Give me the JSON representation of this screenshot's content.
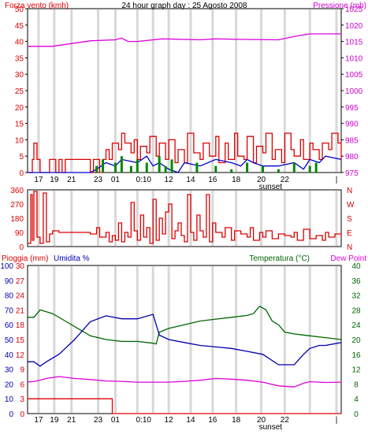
{
  "chart_data": [
    {
      "type": "line",
      "title": "24 hour graph day : 25 Agosto 2008",
      "left_axis_label": "Forza vento (kmh)",
      "right_axis_label": "Pressione (mb)",
      "left_ylim": [
        0,
        50
      ],
      "left_ticks": [
        "0",
        "5",
        "10",
        "15",
        "20",
        "25",
        "30",
        "35",
        "40",
        "45",
        "50"
      ],
      "right_ylim": [
        975,
        1025
      ],
      "right_ticks": [
        "975",
        "980",
        "985",
        "990",
        "995",
        "1000",
        "1005",
        "1010",
        "1015",
        "1020",
        "1025"
      ],
      "x_ticks": [
        "17",
        "19",
        "21",
        "23",
        "01",
        "0:10",
        "12",
        "14",
        "16",
        "18",
        "20",
        "22",
        "|"
      ],
      "annotation": "sunset",
      "series": [
        {
          "color": "#dd00dd",
          "axis": "right",
          "x": [
            0,
            0.08,
            0.15,
            0.2,
            0.28,
            0.3,
            0.32,
            0.35,
            0.43,
            0.55,
            0.6,
            0.7,
            0.8,
            0.85,
            0.88,
            0.9,
            1
          ],
          "y": [
            1013.5,
            1013.5,
            1014.5,
            1015.2,
            1015.5,
            1016,
            1015,
            1015,
            1015.8,
            1015.5,
            1015.8,
            1015.6,
            1015.5,
            1016.5,
            1017,
            1017.3,
            1017.3
          ]
        },
        {
          "color": "#dd0000",
          "axis": "left",
          "x": [
            0,
            0.015,
            0.02,
            0.03,
            0.04,
            0.06,
            0.07,
            0.09,
            0.1,
            0.11,
            0.12,
            0.2,
            0.21,
            0.23,
            0.24,
            0.25,
            0.26,
            0.27,
            0.29,
            0.3,
            0.31,
            0.33,
            0.34,
            0.35,
            0.36,
            0.38,
            0.39,
            0.41,
            0.42,
            0.44,
            0.45,
            0.47,
            0.48,
            0.5,
            0.51,
            0.53,
            0.55,
            0.56,
            0.58,
            0.6,
            0.61,
            0.63,
            0.64,
            0.66,
            0.67,
            0.69,
            0.7,
            0.72,
            0.73,
            0.75,
            0.76,
            0.78,
            0.79,
            0.81,
            0.82,
            0.84,
            0.85,
            0.87,
            0.88,
            0.9,
            0.91,
            0.93,
            0.94,
            0.96,
            0.97,
            0.99,
            1
          ],
          "y": [
            0,
            4,
            9,
            4,
            0,
            0,
            4,
            0,
            4,
            0,
            4,
            0,
            4,
            0,
            4,
            7,
            4,
            9,
            7,
            12,
            9,
            6,
            10,
            4,
            8,
            6,
            11,
            5,
            9,
            4,
            10,
            3,
            7,
            3,
            12,
            6,
            4,
            9,
            5,
            11,
            3,
            9,
            4,
            12,
            5,
            4,
            11,
            3,
            8,
            6,
            12,
            4,
            7,
            3,
            12,
            7,
            5,
            10,
            4,
            9,
            7,
            4,
            9,
            7,
            12,
            9,
            4
          ]
        },
        {
          "color": "#0000cc",
          "axis": "left",
          "x": [
            0,
            0.2,
            0.22,
            0.25,
            0.28,
            0.3,
            0.35,
            0.38,
            0.4,
            0.42,
            0.45,
            0.48,
            0.5,
            0.55,
            0.6,
            0.65,
            0.68,
            0.7,
            0.72,
            0.75,
            0.8,
            0.85,
            0.88,
            0.9,
            0.93,
            0.95,
            1
          ],
          "y": [
            0,
            0,
            1,
            3,
            2,
            4,
            3,
            5,
            2,
            3,
            1,
            0,
            3,
            2,
            4,
            3,
            2,
            4,
            3,
            2,
            2,
            3,
            1,
            4,
            3,
            5,
            4
          ]
        },
        {
          "color": "#008800",
          "axis": "left",
          "x": [
            0.2,
            0.22,
            0.24,
            0.26,
            0.28,
            0.3,
            0.33,
            0.35,
            0.38,
            0.4,
            0.42,
            0.44,
            0.46,
            0.52,
            0.54,
            0.56,
            0.6,
            0.65,
            0.7,
            0.72,
            0.75,
            0.8,
            0.85,
            0.88,
            0.9,
            0.92,
            0.95
          ],
          "y": [
            0,
            2,
            4,
            0,
            3,
            5,
            2,
            4,
            3,
            0,
            5,
            2,
            4,
            0,
            3,
            0,
            2,
            1,
            3,
            0,
            2,
            1,
            3,
            0,
            2,
            3,
            0
          ]
        }
      ]
    },
    {
      "type": "line",
      "left_ylim": [
        0,
        360
      ],
      "left_ticks": [
        "0",
        "90",
        "180",
        "270",
        "360"
      ],
      "right_labels": [
        "N",
        "W",
        "S",
        "E",
        "N"
      ],
      "series": [
        {
          "color": "#dd0000",
          "axis": "left",
          "x": [
            0,
            0.01,
            0.015,
            0.02,
            0.03,
            0.04,
            0.05,
            0.06,
            0.07,
            0.08,
            0.1,
            0.15,
            0.2,
            0.22,
            0.23,
            0.25,
            0.26,
            0.27,
            0.28,
            0.29,
            0.3,
            0.31,
            0.32,
            0.33,
            0.34,
            0.35,
            0.36,
            0.37,
            0.38,
            0.39,
            0.4,
            0.41,
            0.42,
            0.43,
            0.44,
            0.45,
            0.46,
            0.47,
            0.48,
            0.49,
            0.5,
            0.51,
            0.52,
            0.53,
            0.54,
            0.55,
            0.56,
            0.57,
            0.58,
            0.59,
            0.6,
            0.62,
            0.63,
            0.65,
            0.66,
            0.68,
            0.7,
            0.71,
            0.72,
            0.74,
            0.75,
            0.76,
            0.78,
            0.8,
            0.82,
            0.84,
            0.85,
            0.86,
            0.88,
            0.9,
            0.92,
            0.94,
            0.95,
            0.96,
            0.98,
            1
          ],
          "y": [
            20,
            330,
            40,
            350,
            60,
            20,
            340,
            30,
            80,
            100,
            90,
            90,
            80,
            120,
            60,
            90,
            30,
            70,
            40,
            150,
            30,
            90,
            60,
            280,
            100,
            40,
            200,
            60,
            120,
            20,
            300,
            40,
            180,
            80,
            220,
            270,
            50,
            100,
            150,
            70,
            30,
            330,
            90,
            40,
            200,
            100,
            60,
            330,
            30,
            150,
            90,
            60,
            120,
            40,
            100,
            80,
            60,
            120,
            40,
            90,
            60,
            100,
            50,
            80,
            70,
            60,
            90,
            40,
            110,
            50,
            70,
            40,
            90,
            60,
            80,
            60
          ]
        }
      ]
    },
    {
      "type": "line",
      "left_axis_label_1": "Pioggia (mm)",
      "left_axis_label_2": "Umidita %",
      "right_axis_label_1": "Temperatura (°C)",
      "right_axis_label_2": "Dew Point",
      "rain_ylim": [
        0,
        30
      ],
      "rain_ticks": [
        "0",
        "3",
        "6",
        "9",
        "12",
        "15",
        "18",
        "21",
        "24",
        "27",
        "30"
      ],
      "hum_ylim": [
        0,
        100
      ],
      "hum_ticks": [
        "0",
        "10",
        "20",
        "30",
        "40",
        "50",
        "60",
        "70",
        "80",
        "90",
        "100"
      ],
      "temp_ylim": [
        0,
        40
      ],
      "temp_ticks": [
        "0",
        "4",
        "8",
        "12",
        "16",
        "20",
        "24",
        "28",
        "32",
        "36",
        "40"
      ],
      "x_ticks": [
        "17",
        "19",
        "21",
        "23",
        "01",
        "0:10",
        "12",
        "14",
        "16",
        "18",
        "20",
        "22",
        "|"
      ],
      "annotation": "sunset",
      "series": [
        {
          "color": "#006600",
          "axis": "temp",
          "x": [
            0,
            0.02,
            0.04,
            0.08,
            0.12,
            0.16,
            0.2,
            0.25,
            0.3,
            0.35,
            0.4,
            0.41,
            0.42,
            0.45,
            0.5,
            0.55,
            0.6,
            0.65,
            0.7,
            0.72,
            0.74,
            0.76,
            0.78,
            0.8,
            0.82,
            0.85,
            0.9,
            0.95,
            1
          ],
          "y": [
            26,
            26,
            28,
            27,
            25,
            23,
            21,
            20,
            19.5,
            19.5,
            19,
            18.8,
            22,
            23,
            24,
            25,
            25.5,
            26,
            26.5,
            27,
            29,
            28,
            25,
            24,
            22,
            21.5,
            21,
            20.5,
            20
          ]
        },
        {
          "color": "#0000aa",
          "axis": "hum",
          "x": [
            0,
            0.02,
            0.04,
            0.06,
            0.1,
            0.15,
            0.2,
            0.25,
            0.3,
            0.35,
            0.4,
            0.41,
            0.42,
            0.45,
            0.5,
            0.55,
            0.6,
            0.65,
            0.7,
            0.75,
            0.8,
            0.85,
            0.88,
            0.9,
            0.93,
            0.95,
            1
          ],
          "y": [
            35,
            35,
            32,
            35,
            40,
            50,
            62,
            66,
            64,
            64,
            67,
            60,
            53,
            50,
            48,
            46,
            45,
            44,
            42,
            40,
            33,
            33,
            40,
            44,
            46,
            46,
            48
          ]
        },
        {
          "color": "#dd00dd",
          "axis": "temp",
          "x": [
            0,
            0.03,
            0.06,
            0.1,
            0.15,
            0.2,
            0.25,
            0.3,
            0.35,
            0.4,
            0.45,
            0.5,
            0.55,
            0.6,
            0.65,
            0.7,
            0.75,
            0.8,
            0.85,
            0.88,
            0.9,
            0.95,
            1
          ],
          "y": [
            8.5,
            8.8,
            9.5,
            10,
            9.5,
            9.2,
            8.8,
            8.7,
            8.5,
            8.5,
            8.5,
            8.7,
            9,
            9.5,
            9.3,
            9,
            8.5,
            7.5,
            7.2,
            8.2,
            8.6,
            8.4,
            8.5
          ]
        },
        {
          "color": "#dd0000",
          "axis": "rain",
          "x": [
            0,
            0.25,
            0.27,
            1
          ],
          "y": [
            3,
            3,
            0,
            0
          ]
        }
      ]
    }
  ]
}
